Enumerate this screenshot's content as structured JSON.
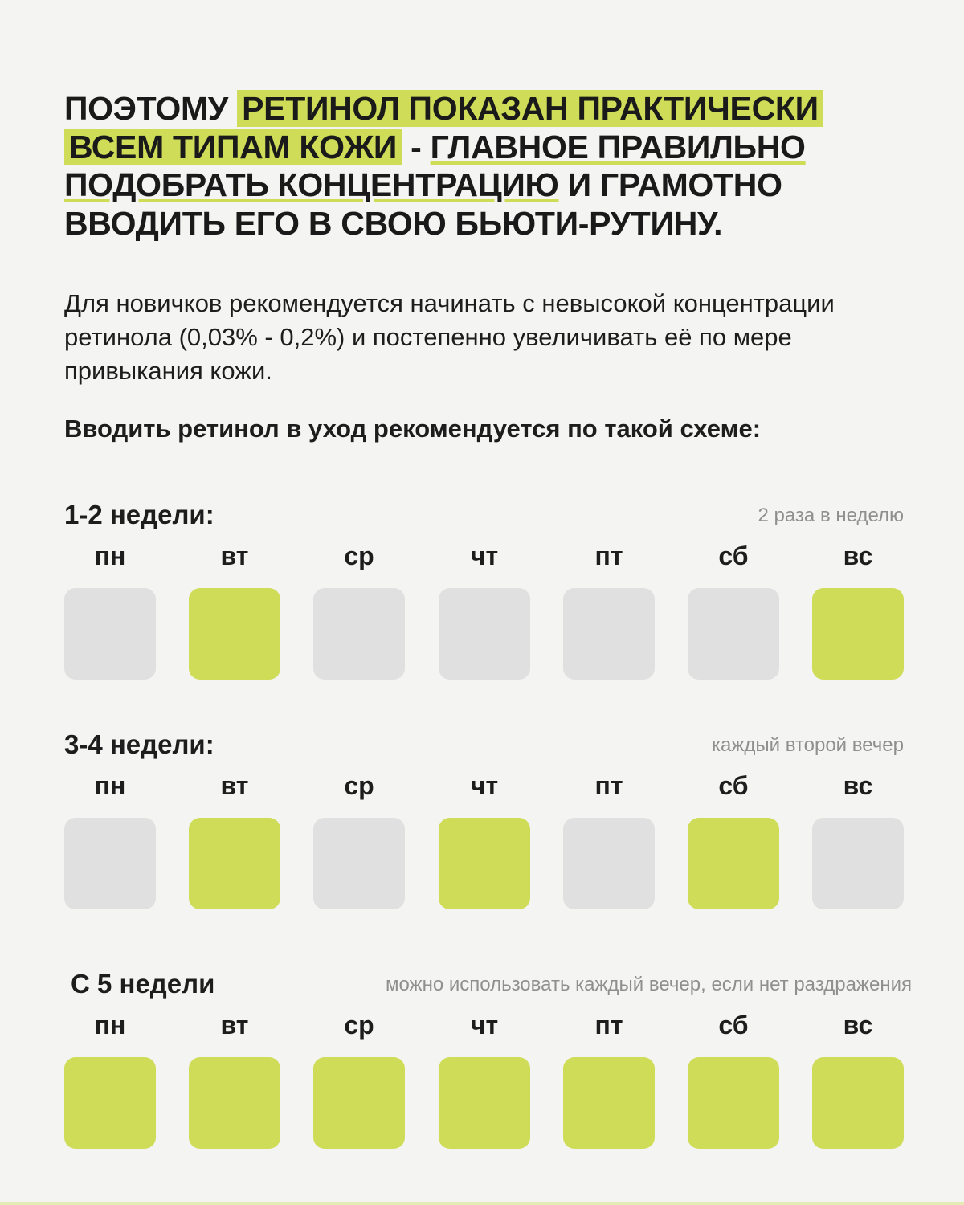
{
  "headline": {
    "p1": "ПОЭТОМУ",
    "p2": "РЕТИНОЛ ПОКАЗАН ПРАКТИЧЕСКИ ВСЕМ ТИПАМ КОЖИ",
    "p3": " - ",
    "p4": "ГЛАВНОЕ ПРАВИЛЬНО ПОДОБРАТЬ КОНЦЕНТРАЦИЮ",
    "p5": " И ГРАМОТНО ВВОДИТЬ ЕГО В СВОЮ БЬЮТИ-РУТИНУ."
  },
  "intro": "Для новичков рекомендуется начинать с невысокой концентрации ретинола (0,03% - 0,2%) и постепенно увеличивать её по мере привыкания кожи.",
  "scheme_title": "Вводить ретинол в уход рекомендуется по такой схеме:",
  "colors": {
    "accent": "#cfdc57",
    "inactive": "#e0e0e0",
    "background": "#f4f4f2"
  },
  "weeks": [
    {
      "label": "1-2 недели:",
      "note": "2 раза в неделю",
      "days": [
        {
          "name": "пн",
          "active": false
        },
        {
          "name": "вт",
          "active": true
        },
        {
          "name": "ср",
          "active": false
        },
        {
          "name": "чт",
          "active": false
        },
        {
          "name": "пт",
          "active": false
        },
        {
          "name": "сб",
          "active": false
        },
        {
          "name": "вс",
          "active": true
        }
      ]
    },
    {
      "label": "3-4 недели:",
      "note": "каждый второй вечер",
      "days": [
        {
          "name": "пн",
          "active": false
        },
        {
          "name": "вт",
          "active": true
        },
        {
          "name": "ср",
          "active": false
        },
        {
          "name": "чт",
          "active": true
        },
        {
          "name": "пт",
          "active": false
        },
        {
          "name": "сб",
          "active": true
        },
        {
          "name": "вс",
          "active": false
        }
      ]
    },
    {
      "label": "С 5 недели",
      "note": "можно использовать каждый вечер, если нет раздражения",
      "days": [
        {
          "name": "пн",
          "active": true
        },
        {
          "name": "вт",
          "active": true
        },
        {
          "name": "ср",
          "active": true
        },
        {
          "name": "чт",
          "active": true
        },
        {
          "name": "пт",
          "active": true
        },
        {
          "name": "сб",
          "active": true
        },
        {
          "name": "вс",
          "active": true
        }
      ]
    }
  ]
}
